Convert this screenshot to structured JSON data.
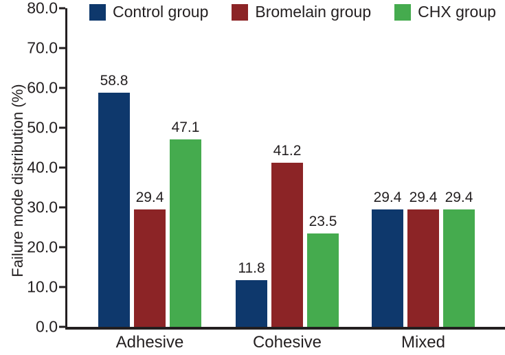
{
  "chart_data": {
    "type": "bar",
    "title": "",
    "categories": [
      "Adhesive",
      "Cohesive",
      "Mixed"
    ],
    "series": [
      {
        "name": "Control group",
        "color": "#0e386c",
        "values": [
          58.8,
          11.8,
          29.4
        ]
      },
      {
        "name": "Bromelain group",
        "color": "#8c2426",
        "values": [
          29.4,
          41.2,
          29.4
        ]
      },
      {
        "name": "CHX group",
        "color": "#45ab4e",
        "values": [
          47.1,
          23.5,
          29.4
        ]
      }
    ],
    "xlabel": "",
    "ylabel": "Failure mode distribution (%)",
    "ylim": [
      0,
      80
    ],
    "yticks": [
      "0.0",
      "10.0",
      "20.0",
      "30.0",
      "40.0",
      "50.0",
      "60.0",
      "70.0",
      "80.0"
    ],
    "value_labels": {
      "Adhesive": [
        "58.8",
        "29.4",
        "47.1"
      ],
      "Cohesive": [
        "11.8",
        "41.2",
        "23.5"
      ],
      "Mixed": [
        "29.4",
        "29.4",
        "29.4"
      ]
    },
    "legend_position": "top",
    "grid": false,
    "axis_color": "#231f20",
    "text_color": "#231f20",
    "background_color": "#ffffff"
  }
}
